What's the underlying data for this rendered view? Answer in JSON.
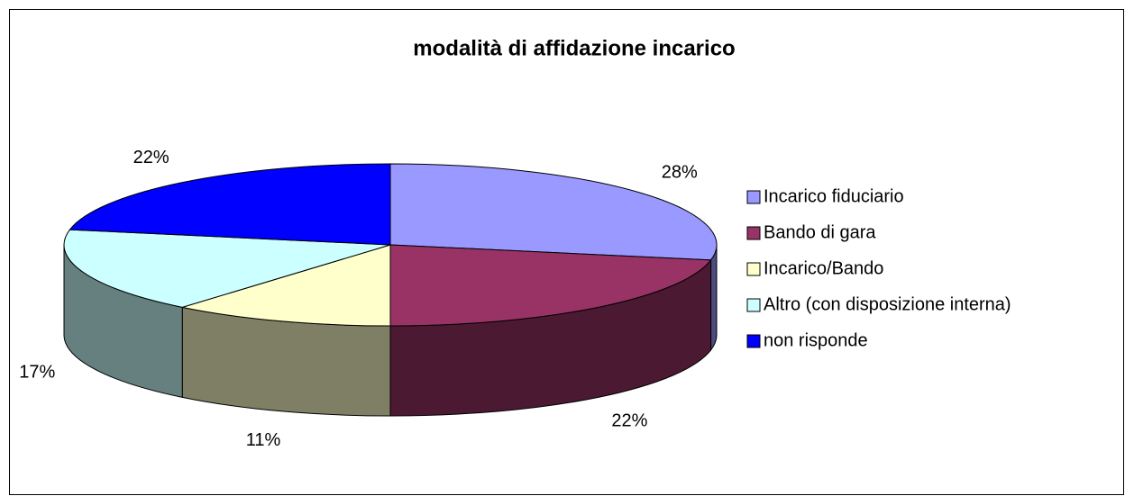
{
  "chart_data": {
    "type": "pie3d",
    "title": "modalità di affidazione incarico",
    "categories": [
      "Incarico fiduciario",
      "Bando di gara",
      "Incarico/Bando",
      "Altro (con disposizione interna)",
      "non risponde"
    ],
    "values": [
      28,
      22,
      11,
      17,
      22
    ],
    "value_labels": [
      "28%",
      "22%",
      "11%",
      "17%",
      "22%"
    ],
    "colors": [
      "#9999ff",
      "#993366",
      "#ffffcc",
      "#ccffff",
      "#0000ff"
    ],
    "legend": "right"
  }
}
